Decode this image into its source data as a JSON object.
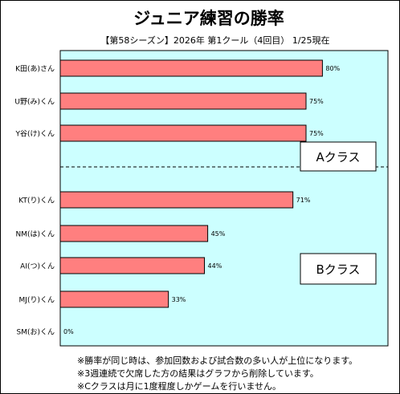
{
  "chart_data": {
    "type": "bar",
    "orientation": "horizontal",
    "title": "ジュニア練習の勝率",
    "subtitle": "【第58シーズン】2026年 第1クール（4回目） 1/25現在",
    "categories": [
      "K田(あ)さん",
      "U野(み)くん",
      "Y谷(け)くん",
      "KT(り)くん",
      "NM(は)くん",
      "AI(つ)くん",
      "MJ(り)くん",
      "SM(お)くん"
    ],
    "values": [
      80,
      75,
      75,
      71,
      45,
      44,
      33,
      0
    ],
    "value_labels": [
      "80%",
      "75%",
      "75%",
      "71%",
      "45%",
      "44%",
      "33%",
      "0%"
    ],
    "xlim": [
      0,
      100
    ],
    "grid": false,
    "groups": [
      {
        "label": "Aクラス",
        "members": [
          "K田(あ)さん",
          "U野(み)くん",
          "Y谷(け)くん"
        ]
      },
      {
        "label": "Bクラス",
        "members": [
          "KT(り)くん",
          "NM(は)くん",
          "AI(つ)くん",
          "MJ(り)くん",
          "SM(お)くん"
        ]
      }
    ],
    "colors": {
      "bar": "#FF7F7F",
      "plot_bg": "#CCFFFF",
      "bar_stroke": "#000000"
    }
  },
  "notes": [
    "※勝率が同じ時は、参加回数および試合数の多い人が上位になります。",
    "※3週連続で欠席した方の結果はグラフから削除しています。",
    "※Cクラスは月に1度程度しかゲームを行いません。"
  ]
}
